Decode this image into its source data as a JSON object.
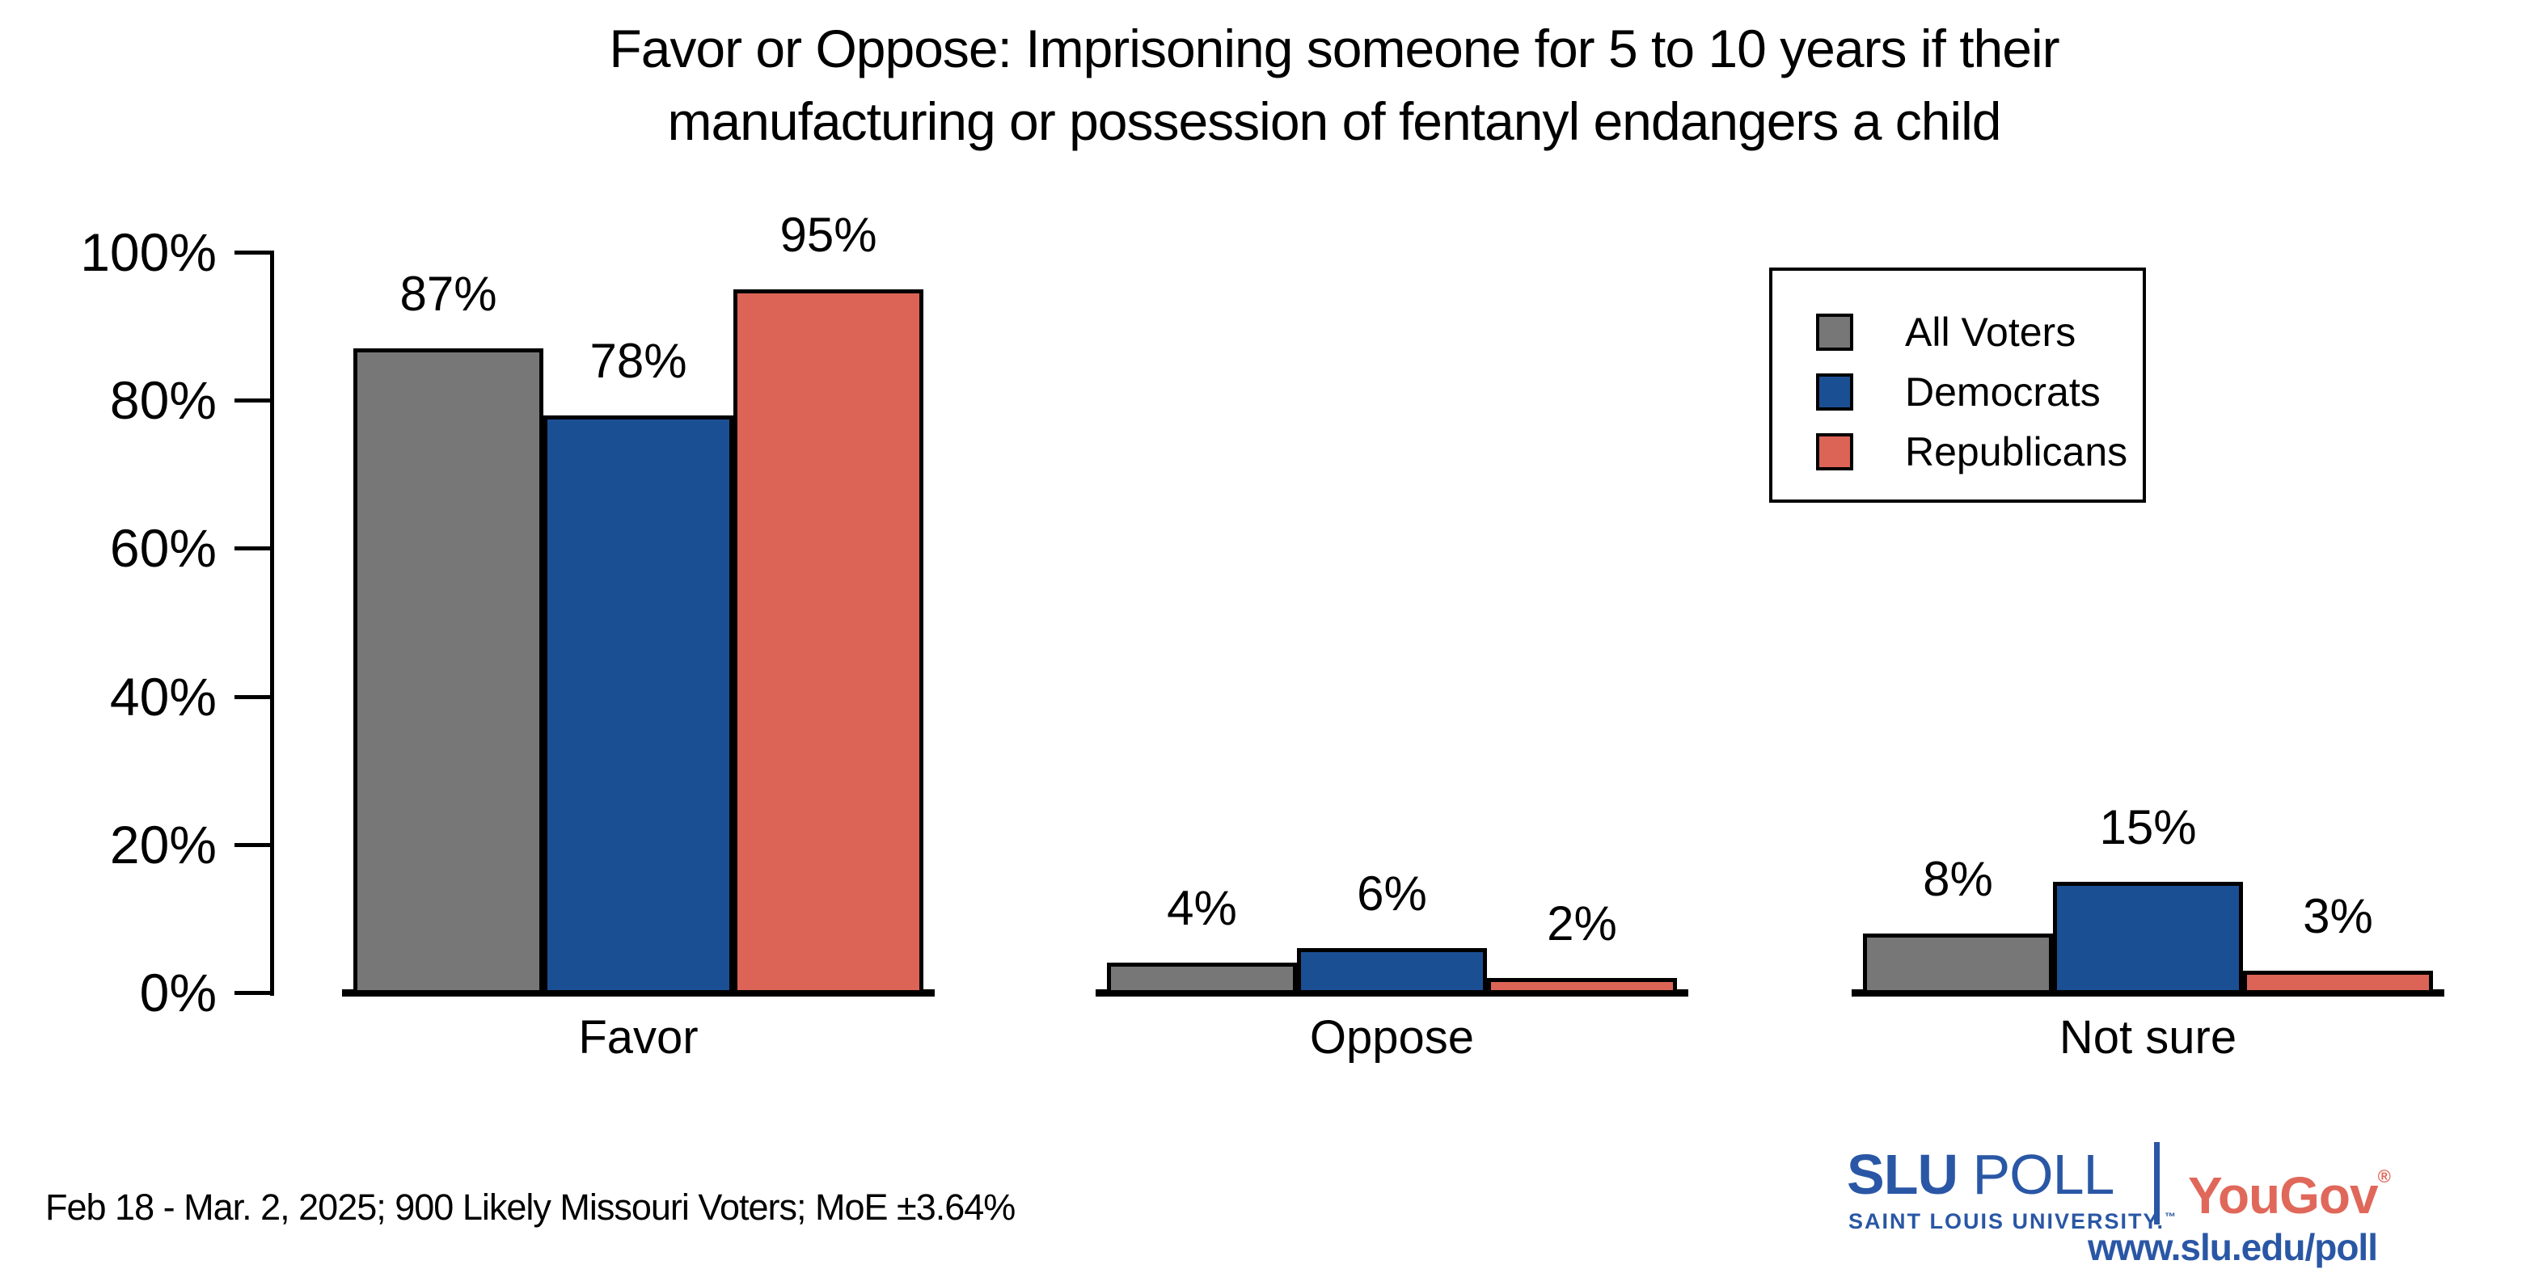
{
  "title": {
    "line1": "Favor or Oppose: Imprisoning someone for 5 to 10 years if their",
    "line2": "manufacturing or possession of fentanyl endangers a child"
  },
  "chart_data": {
    "type": "bar",
    "title": "Favor or Oppose: Imprisoning someone for 5 to 10 years if their manufacturing or possession of fentanyl endangers a child",
    "categories": [
      "Favor",
      "Oppose",
      "Not sure"
    ],
    "series": [
      {
        "name": "All Voters",
        "color": "#777777",
        "values": [
          87,
          4,
          8
        ]
      },
      {
        "name": "Democrats",
        "color": "#1B4F94",
        "values": [
          78,
          6,
          15
        ]
      },
      {
        "name": "Republicans",
        "color": "#DB6456",
        "values": [
          95,
          2,
          3
        ]
      }
    ],
    "value_suffix": "%",
    "yticks": [
      0,
      20,
      40,
      60,
      80,
      100
    ],
    "ytick_suffix": "%",
    "ylim": [
      0,
      100
    ],
    "grid": false,
    "legend_position": "upper right",
    "bar_border_color": "#000000",
    "xlabel": "",
    "ylabel": ""
  },
  "footer": {
    "note": "Feb 18 - Mar. 2, 2025; 900 Likely Missouri Voters; MoE ±3.64%"
  },
  "branding": {
    "slu_word": "SLU",
    "poll_word": "POLL",
    "subtitle": "SAINT LOUIS UNIVERSITY.",
    "trademark": "™",
    "partner": "YouGov",
    "registered": "®",
    "url": "www.slu.edu/poll",
    "slu_blue": "#2A57A5",
    "partner_red": "#E0685A"
  }
}
